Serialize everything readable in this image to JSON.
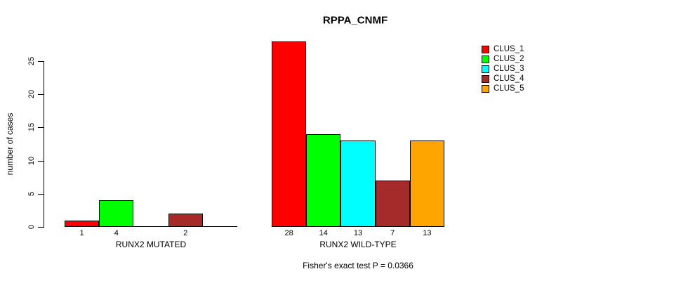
{
  "page": {
    "background": "#ffffff"
  },
  "chart_data": {
    "type": "bar",
    "title": "RPPA_CNMF",
    "ylabel": "number of cases",
    "ylim": [
      0,
      28
    ],
    "yticks": [
      0,
      5,
      10,
      15,
      20,
      25
    ],
    "grid": false,
    "legend_position": "right",
    "legend": [
      {
        "label": "CLUS_1",
        "color": "#FF0000"
      },
      {
        "label": "CLUS_2",
        "color": "#00FF00"
      },
      {
        "label": "CLUS_3",
        "color": "#00FFFF"
      },
      {
        "label": "CLUS_4",
        "color": "#A52A2A"
      },
      {
        "label": "CLUS_5",
        "color": "#FFA500"
      }
    ],
    "groups": [
      {
        "label": "RUNX2 MUTATED",
        "series": [
          "CLUS_1",
          "CLUS_2",
          "CLUS_3",
          "CLUS_4",
          "CLUS_5"
        ],
        "values": [
          1,
          4,
          0,
          2,
          0
        ],
        "bar_labels": [
          "1",
          "4",
          "",
          "2",
          ""
        ]
      },
      {
        "label": "RUNX2 WILD-TYPE",
        "series": [
          "CLUS_1",
          "CLUS_2",
          "CLUS_3",
          "CLUS_4",
          "CLUS_5"
        ],
        "values": [
          28,
          14,
          13,
          7,
          13
        ],
        "bar_labels": [
          "28",
          "14",
          "13",
          "7",
          "13"
        ]
      }
    ],
    "annotation": "Fisher's exact test P = 0.0366"
  }
}
